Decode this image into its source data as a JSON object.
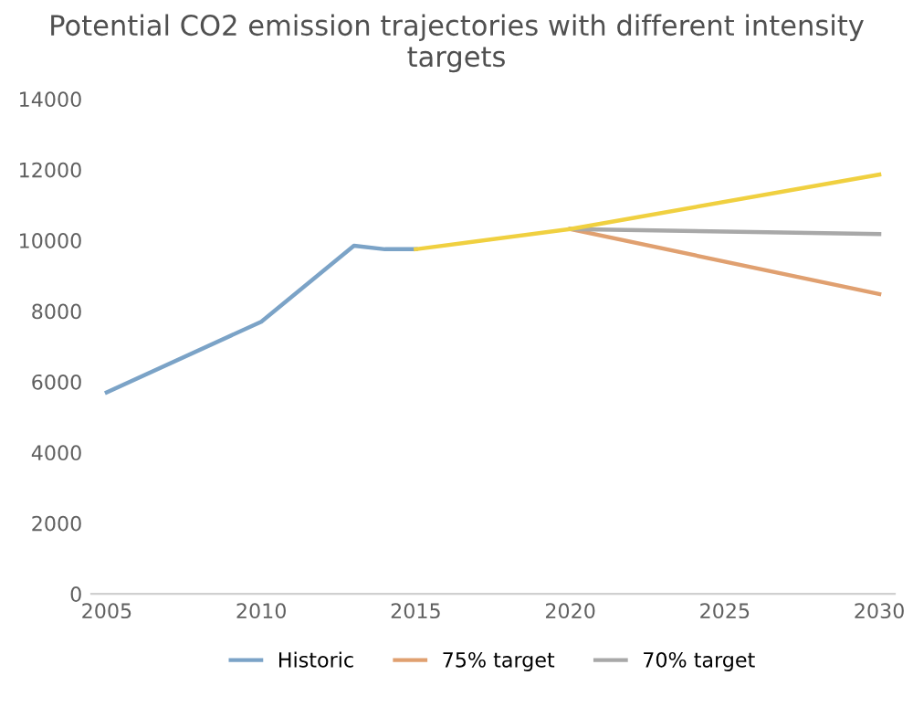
{
  "chart_data": {
    "type": "line",
    "title": "Potential CO2 emission trajectories with different intensity targets",
    "xlim": [
      2004.5,
      2030.5
    ],
    "xticks": [
      2005,
      2010,
      2015,
      2020,
      2025,
      2030
    ],
    "ylim": [
      0,
      14000
    ],
    "yticks": [
      0,
      2000,
      4000,
      6000,
      8000,
      10000,
      12000,
      14000
    ],
    "grid": false,
    "legend": "bottom",
    "marker": "none",
    "series": [
      {
        "name": "Historic",
        "color": "#7ba3c7",
        "x": [
          2005,
          2010,
          2013,
          2014,
          2015
        ],
        "values": [
          5700,
          7700,
          9850,
          9750,
          9750
        ]
      },
      {
        "name": "75% target",
        "color": "#e0a070",
        "x": [
          2020,
          2030
        ],
        "values": [
          10320,
          8480
        ]
      },
      {
        "name": "70% target",
        "color": "#a8a8a8",
        "x": [
          2020,
          2030
        ],
        "values": [
          10320,
          10180
        ]
      },
      {
        "color": "#f0d040",
        "x": [
          2015,
          2020,
          2030
        ],
        "values": [
          9750,
          10320,
          11860
        ]
      }
    ]
  }
}
